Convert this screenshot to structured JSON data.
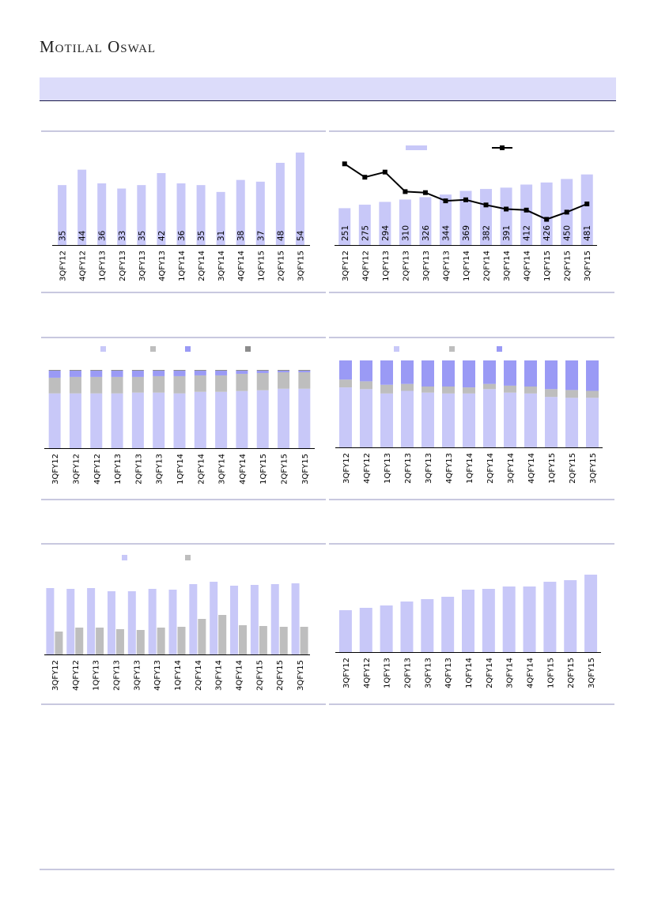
{
  "header": {
    "brand": "Motilal Oswal"
  },
  "chart_data": [
    {
      "type": "bar",
      "categories": [
        "3QFY12",
        "4QFY12",
        "1QFY13",
        "2QFY13",
        "3QFY13",
        "4QFY13",
        "1QFY14",
        "2QFY14",
        "3QFY14",
        "4QFY14",
        "1QFY15",
        "2QFY15",
        "3QFY15"
      ],
      "series": [
        {
          "color": "#c8c8f8",
          "values": [
            35,
            44,
            36,
            33,
            35,
            42,
            36,
            35,
            31,
            38,
            37,
            48,
            54
          ],
          "labels": true
        }
      ],
      "ylim": [
        0,
        60
      ]
    },
    {
      "type": "bar",
      "categories": [
        "3QFY12",
        "4QFY12",
        "1QFY13",
        "2QFY13",
        "3QFY13",
        "4QFY13",
        "1QFY14",
        "2QFY14",
        "3QFY14",
        "4QFY14",
        "1QFY15",
        "2QFY15",
        "3QFY15"
      ],
      "series": [
        {
          "color": "#c8c8f8",
          "values": [
            251,
            275,
            294,
            310,
            326,
            344,
            369,
            382,
            391,
            412,
            426,
            450,
            481
          ],
          "labels": true
        },
        {
          "color": "#000000",
          "type": "line",
          "axis": "y2",
          "values": [
            7.9,
            6.6,
            7.1,
            5.2,
            5.1,
            4.3,
            4.4,
            3.9,
            3.5,
            3.4,
            2.5,
            3.2,
            4.0
          ]
        }
      ],
      "ylim": [
        0,
        700
      ],
      "y2lim": [
        0,
        10
      ],
      "legend": true
    },
    {
      "type": "stacked_bar",
      "categories": [
        "3QFY12",
        "3QFY12",
        "4QFY12",
        "1QFY13",
        "2QFY13",
        "3QFY13",
        "1QFY14",
        "2QFY14",
        "3QFY14",
        "4QFY14",
        "1QFY15",
        "2QFY15",
        "3QFY15"
      ],
      "series": [
        {
          "color": "#c8c8f8",
          "values": [
            70,
            70,
            70,
            70,
            71,
            71,
            70,
            72,
            72,
            73,
            74,
            76,
            76
          ]
        },
        {
          "color": "#bebebe",
          "values": [
            20,
            21,
            21,
            21,
            20,
            21,
            22,
            21,
            21,
            22,
            22,
            21,
            21
          ]
        },
        {
          "color": "#9a9af5",
          "values": [
            9,
            8,
            8,
            8,
            8,
            7,
            7,
            6,
            6,
            4,
            3,
            2,
            2
          ]
        },
        {
          "color": "#8c8c8c",
          "values": [
            1,
            1,
            1,
            1,
            1,
            1,
            1,
            1,
            1,
            1,
            1,
            1,
            1
          ]
        }
      ],
      "ylim": [
        0,
        100
      ],
      "legend": true
    },
    {
      "type": "stacked_bar",
      "categories": [
        "3QFY12",
        "4QFY12",
        "1QFY13",
        "2QFY13",
        "3QFY13",
        "4QFY13",
        "1QFY14",
        "2QFY14",
        "3QFY14",
        "4QFY14",
        "1QFY15",
        "2QFY15",
        "3QFY15"
      ],
      "series": [
        {
          "color": "#c8c8f8",
          "values": [
            69,
            67,
            62,
            65,
            63,
            62,
            62,
            67,
            63,
            62,
            58,
            57,
            57
          ]
        },
        {
          "color": "#bebebe",
          "values": [
            9,
            9,
            10,
            8,
            7,
            8,
            7,
            6,
            8,
            8,
            9,
            9,
            8
          ]
        },
        {
          "color": "#9a9af5",
          "values": [
            22,
            24,
            28,
            27,
            30,
            30,
            31,
            27,
            29,
            30,
            33,
            34,
            35
          ]
        }
      ],
      "ylim": [
        0,
        100
      ],
      "legend": true
    },
    {
      "type": "bar",
      "categories": [
        "3QFY12",
        "4QFY12",
        "1QFY13",
        "2QFY13",
        "3QFY13",
        "4QFY13",
        "1QFY14",
        "2QFY14",
        "3QFY14",
        "4QFY14",
        "2QFY15",
        "2QFY15",
        "3QFY15"
      ],
      "series": [
        {
          "color": "#c8c8f8",
          "values": [
            84,
            83,
            84,
            80,
            80,
            83,
            82,
            89,
            92,
            87,
            88,
            89,
            90
          ]
        },
        {
          "color": "#bebebe",
          "values": [
            29,
            34,
            34,
            32,
            31,
            34,
            35,
            45,
            50,
            37,
            36,
            35,
            35
          ]
        }
      ],
      "ylim": [
        0,
        100
      ],
      "legend": true
    },
    {
      "type": "bar",
      "categories": [
        "3QFY12",
        "4QFY12",
        "1QFY13",
        "2QFY13",
        "3QFY13",
        "4QFY13",
        "1QFY14",
        "2QFY14",
        "3QFY14",
        "4QFY14",
        "1QFY15",
        "2QFY15",
        "3QFY15"
      ],
      "series": [
        {
          "color": "#c8c8f8",
          "values": [
            53,
            56,
            59,
            64,
            67,
            70,
            79,
            80,
            83,
            83,
            89,
            91,
            98
          ]
        }
      ],
      "ylim": [
        0,
        100
      ]
    }
  ]
}
